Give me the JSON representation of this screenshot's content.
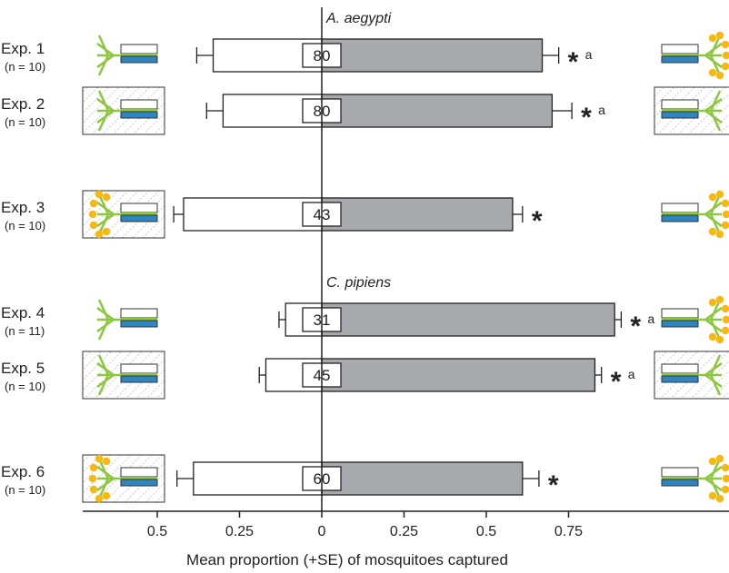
{
  "chart_data": {
    "type": "bar",
    "orientation": "horizontal-diverging",
    "xlabel": "Mean proportion (+SE) of mosquitoes captured",
    "x_ticks": [
      {
        "value": -0.5,
        "label": "0.5"
      },
      {
        "value": -0.25,
        "label": "0.25"
      },
      {
        "value": 0,
        "label": "0"
      },
      {
        "value": 0.25,
        "label": "0.25"
      },
      {
        "value": 0.5,
        "label": "0.5"
      },
      {
        "value": 0.75,
        "label": "0.75"
      }
    ],
    "xlim": [
      -0.73,
      1.25
    ],
    "colors": {
      "left_bar": "#ffffff",
      "right_bar": "#a7a9ac",
      "axis": "#222222"
    },
    "groups": [
      {
        "name": "A. aegypti",
        "experiments": [
          0,
          1,
          2
        ]
      },
      {
        "name": "C. pipiens",
        "experiments": [
          3,
          4,
          5
        ]
      }
    ],
    "experiments": [
      {
        "label": "Exp. 1",
        "n": "(n = 10)",
        "total": "80",
        "left": 0.33,
        "left_se": 0.05,
        "right": 0.67,
        "right_se": 0.05,
        "star": "*",
        "sup": "a",
        "left_icon": "plain",
        "right_icon": "flowers"
      },
      {
        "label": "Exp. 2",
        "n": "(n = 10)",
        "total": "80",
        "left": 0.3,
        "left_se": 0.05,
        "right": 0.7,
        "right_se": 0.06,
        "star": "*",
        "sup": "a",
        "left_icon": "hatched",
        "right_icon": "hatched"
      },
      {
        "label": "Exp. 3",
        "n": "(n = 10)",
        "total": "43",
        "left": 0.42,
        "left_se": 0.03,
        "right": 0.58,
        "right_se": 0.03,
        "star": "*",
        "sup": "",
        "left_icon": "hatched-flowers",
        "right_icon": "flowers"
      },
      {
        "label": "Exp. 4",
        "n": "(n = 11)",
        "total": "31",
        "left": 0.11,
        "left_se": 0.02,
        "right": 0.89,
        "right_se": 0.02,
        "star": "*",
        "sup": "a",
        "left_icon": "plain",
        "right_icon": "flowers"
      },
      {
        "label": "Exp. 5",
        "n": "(n = 10)",
        "total": "45",
        "left": 0.17,
        "left_se": 0.02,
        "right": 0.83,
        "right_se": 0.02,
        "star": "*",
        "sup": "a",
        "left_icon": "hatched",
        "right_icon": "hatched"
      },
      {
        "label": "Exp. 6",
        "n": "(n = 10)",
        "total": "60",
        "left": 0.39,
        "left_se": 0.05,
        "right": 0.61,
        "right_se": 0.05,
        "star": "*",
        "sup": "",
        "left_icon": "hatched-flowers",
        "right_icon": "flowers"
      }
    ]
  }
}
